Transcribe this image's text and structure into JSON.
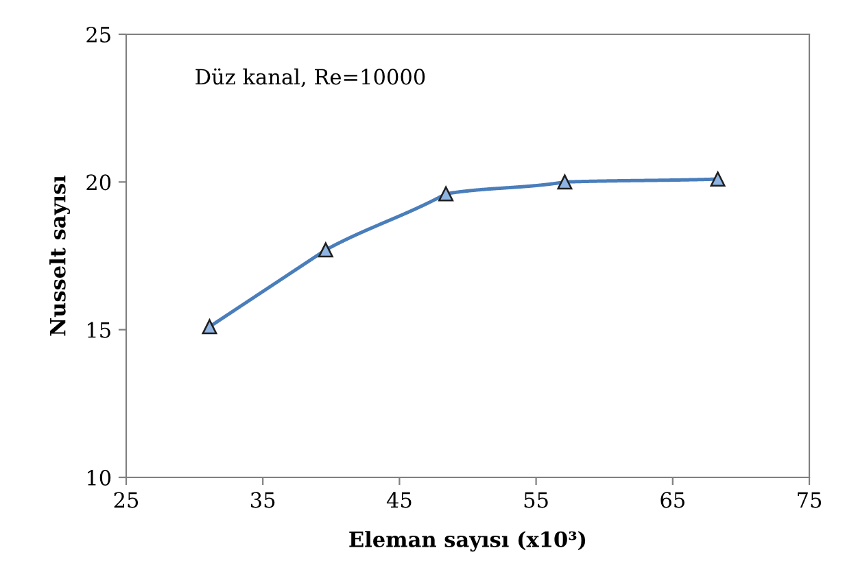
{
  "chart_data": {
    "type": "line",
    "xlabel": "Eleman sayısı (x10³)",
    "ylabel": "Nusselt sayısı",
    "annotations": [
      "Düz kanal, Re=10000"
    ],
    "x": [
      31.1,
      39.6,
      48.4,
      57.1,
      68.3
    ],
    "series": [
      {
        "color": "#4a7ebb",
        "values": [
          15.1,
          17.7,
          19.6,
          20.0,
          20.1
        ]
      }
    ],
    "xlim": [
      25,
      75
    ],
    "xticks": [
      25,
      35,
      45,
      55,
      65,
      75
    ],
    "ylim": [
      10,
      25
    ],
    "yticks": [
      10,
      15,
      20,
      25
    ],
    "marker": "triangle",
    "line_style": "solid",
    "grid": false
  }
}
